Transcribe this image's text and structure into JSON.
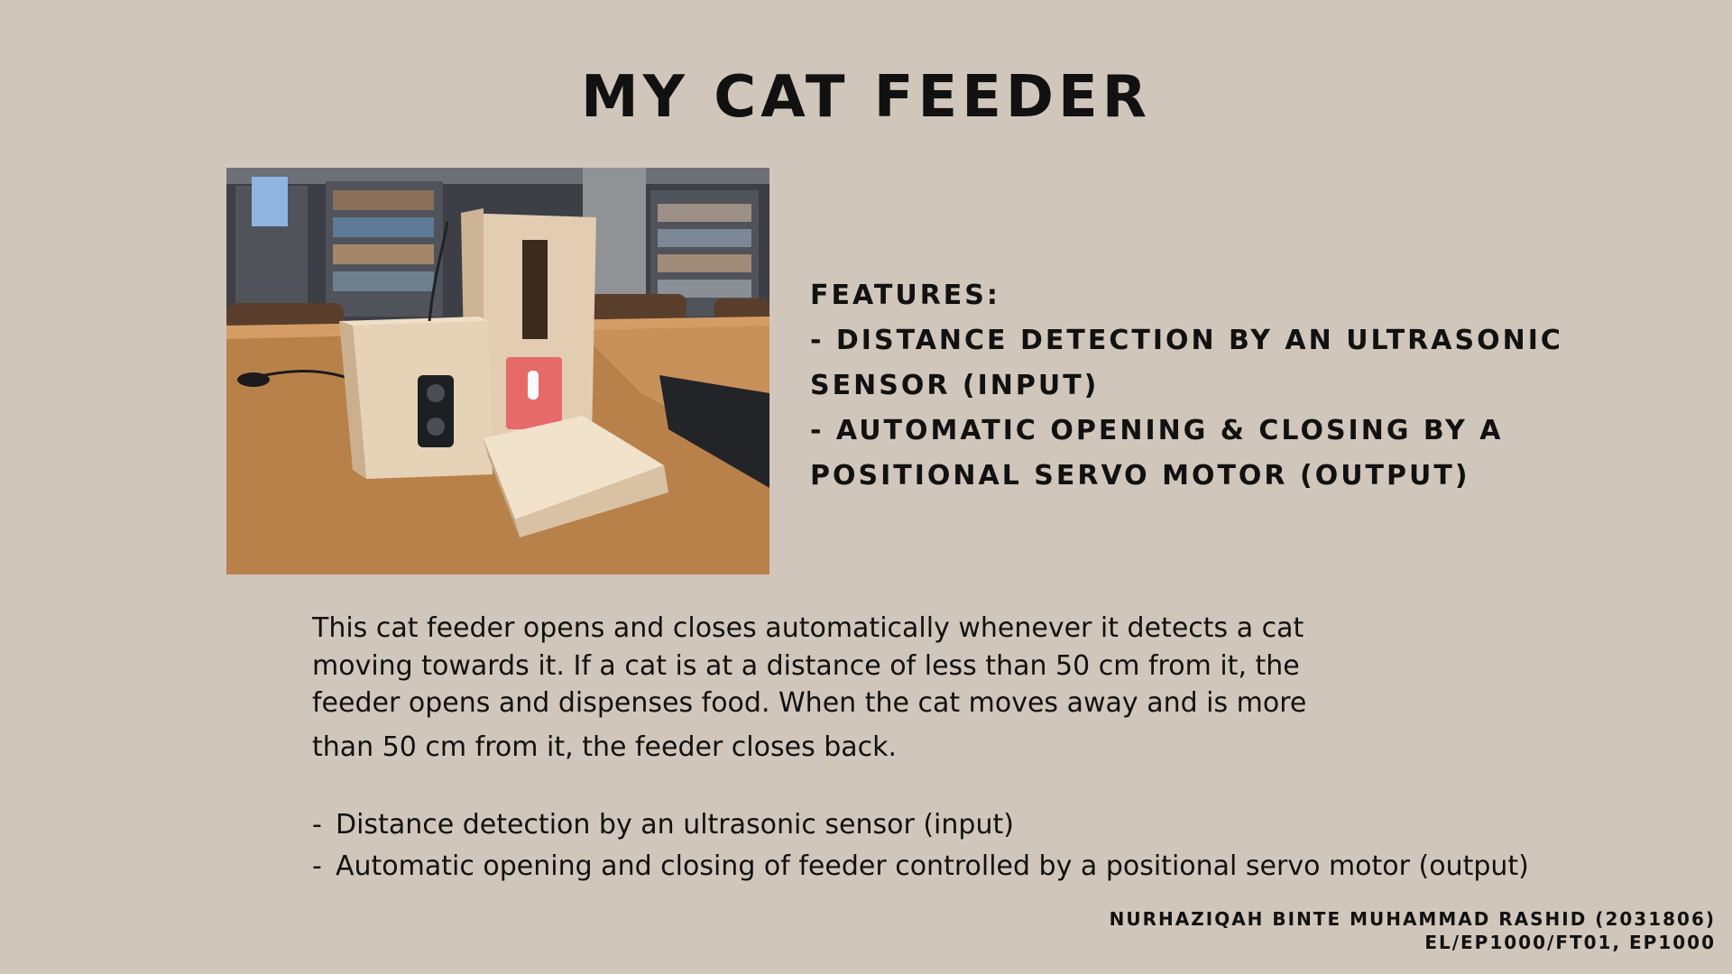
{
  "slide": {
    "title": "MY CAT FEEDER",
    "photo_icon": "cat-feeder-photo",
    "features": {
      "heading": "FEATURES:",
      "item1_line1": "-  DISTANCE DETECTION BY AN ULTRASONIC",
      "item1_line2": "SENSOR (INPUT)",
      "item2_line1": "-  AUTOMATIC OPENING & CLOSING BY A",
      "item2_line2": "POSITIONAL SERVO MOTOR (OUTPUT)"
    },
    "description": {
      "line1": "This cat feeder opens and closes automatically whenever it detects a cat",
      "line2": "moving towards it. If a cat is at a distance of less than 50 cm from it, the",
      "line3": "feeder opens and dispenses food. When the cat moves away and is more",
      "line4": "than 50 cm from it, the feeder closes back."
    },
    "bullets": [
      {
        "dash": "-",
        "text": "Distance detection by an ultrasonic sensor (input)"
      },
      {
        "dash": "-",
        "text": "Automatic opening and closing of feeder controlled by a positional servo motor (output)"
      }
    ],
    "credit": {
      "line1": "NURHAZIQAH BINTE MUHAMMAD RASHID (2031806)",
      "line2": "EL/EP1000/FT01, EP1000"
    }
  }
}
